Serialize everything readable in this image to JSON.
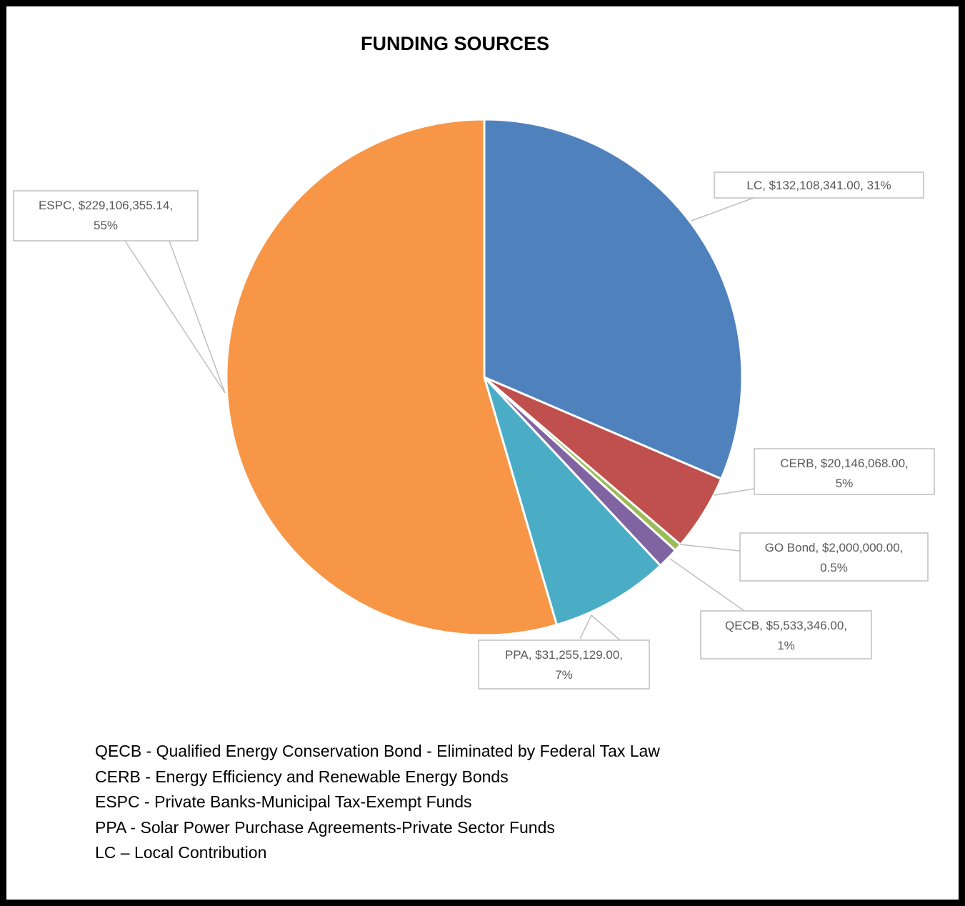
{
  "chart_data": {
    "type": "pie",
    "title": "FUNDING SOURCES",
    "slices": [
      {
        "label": "LC",
        "amount": "$132,108,341.00",
        "percent_label": "31%",
        "value": 132108341.0,
        "color": "#4f81bd"
      },
      {
        "label": "CERB",
        "amount": "$20,146,068.00",
        "percent_label": "5%",
        "value": 20146068.0,
        "color": "#c0504d"
      },
      {
        "label": "GO Bond",
        "amount": "$2,000,000.00",
        "percent_label": "0.5%",
        "value": 2000000.0,
        "color": "#9bbb59"
      },
      {
        "label": "QECB",
        "amount": "$5,533,346.00",
        "percent_label": "1%",
        "value": 5533346.0,
        "color": "#8064a2"
      },
      {
        "label": "PPA",
        "amount": "$31,255,129.00",
        "percent_label": "7%",
        "value": 31255129.0,
        "color": "#4bacc6"
      },
      {
        "label": "ESPC",
        "amount": "$229,106,355.14",
        "percent_label": "55%",
        "value": 229106355.14,
        "color": "#f79646"
      }
    ],
    "data_labels": [
      {
        "line1": "LC,  $132,108,341.00, 31%",
        "line2": ""
      },
      {
        "line1": "CERB,  $20,146,068.00,",
        "line2": "5%"
      },
      {
        "line1": "GO Bond,  $2,000,000.00,",
        "line2": "0.5%"
      },
      {
        "line1": "QECB,  $5,533,346.00,",
        "line2": "1%"
      },
      {
        "line1": "PPA,  $31,255,129.00,",
        "line2": "7%"
      },
      {
        "line1": "ESPC,  $229,106,355.14,",
        "line2": "55%"
      }
    ]
  },
  "notes": [
    "QECB - Qualified Energy Conservation Bond - Eliminated by Federal Tax Law",
    "CERB - Energy Efficiency and Renewable Energy Bonds",
    "ESPC - Private Banks-Municipal Tax-Exempt Funds",
    "PPA - Solar Power Purchase Agreements-Private Sector Funds",
    "LC – Local Contribution"
  ]
}
